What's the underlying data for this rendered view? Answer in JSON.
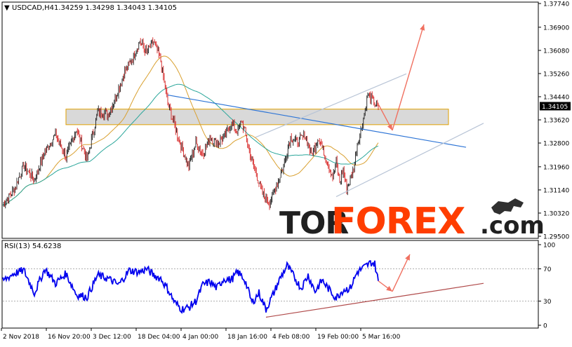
{
  "chart_data": {
    "type": "candlestick",
    "instrument": "USDCAD,H4",
    "ohlc": [
      "1.34259",
      "1.34298",
      "1.34043",
      "1.34105"
    ],
    "current_price": 1.34105,
    "price_axis": {
      "ylim": [
        1.295,
        1.3774
      ],
      "ticks": [
        "1.37740",
        "1.36900",
        "1.36080",
        "1.35260",
        "1.34440",
        "1.33620",
        "1.32800",
        "1.31960",
        "1.31140",
        "1.30320",
        "1.29500"
      ],
      "current_label": "1.34105"
    },
    "time_axis": {
      "labels": [
        "2 Nov 2018",
        "16 Nov 20:00",
        "3 Dec 12:00",
        "18 Dec 04:00",
        "4 Jan 00:00",
        "18 Jan 16:00",
        "4 Feb 08:00",
        "19 Feb 00:00",
        "5 Mar 16:00"
      ]
    },
    "price_anchors": [
      {
        "x": 0,
        "y": 1.306
      },
      {
        "x": 3,
        "y": 1.311
      },
      {
        "x": 6,
        "y": 1.32
      },
      {
        "x": 9,
        "y": 1.315
      },
      {
        "x": 12,
        "y": 1.325
      },
      {
        "x": 15,
        "y": 1.331
      },
      {
        "x": 18,
        "y": 1.323
      },
      {
        "x": 21,
        "y": 1.333
      },
      {
        "x": 24,
        "y": 1.322
      },
      {
        "x": 27,
        "y": 1.339
      },
      {
        "x": 30,
        "y": 1.338
      },
      {
        "x": 32,
        "y": 1.344
      },
      {
        "x": 35,
        "y": 1.354
      },
      {
        "x": 37,
        "y": 1.358
      },
      {
        "x": 39,
        "y": 1.364
      },
      {
        "x": 41,
        "y": 1.36
      },
      {
        "x": 43,
        "y": 1.364
      },
      {
        "x": 45,
        "y": 1.357
      },
      {
        "x": 47,
        "y": 1.342
      },
      {
        "x": 49,
        "y": 1.334
      },
      {
        "x": 51,
        "y": 1.326
      },
      {
        "x": 53,
        "y": 1.32
      },
      {
        "x": 55,
        "y": 1.328
      },
      {
        "x": 57,
        "y": 1.324
      },
      {
        "x": 59,
        "y": 1.33
      },
      {
        "x": 61,
        "y": 1.328
      },
      {
        "x": 63,
        "y": 1.33
      },
      {
        "x": 65,
        "y": 1.335
      },
      {
        "x": 67,
        "y": 1.332
      },
      {
        "x": 68,
        "y": 1.336
      },
      {
        "x": 69,
        "y": 1.332
      },
      {
        "x": 70,
        "y": 1.326
      },
      {
        "x": 72,
        "y": 1.318
      },
      {
        "x": 74,
        "y": 1.31
      },
      {
        "x": 76,
        "y": 1.307
      },
      {
        "x": 78,
        "y": 1.313
      },
      {
        "x": 80,
        "y": 1.32
      },
      {
        "x": 82,
        "y": 1.33
      },
      {
        "x": 84,
        "y": 1.328
      },
      {
        "x": 86,
        "y": 1.331
      },
      {
        "x": 88,
        "y": 1.324
      },
      {
        "x": 90,
        "y": 1.33
      },
      {
        "x": 92,
        "y": 1.323
      },
      {
        "x": 94,
        "y": 1.316
      },
      {
        "x": 95,
        "y": 1.321
      },
      {
        "x": 96,
        "y": 1.314
      },
      {
        "x": 97,
        "y": 1.319
      },
      {
        "x": 98,
        "y": 1.312
      },
      {
        "x": 99,
        "y": 1.315
      },
      {
        "x": 100,
        "y": 1.319
      },
      {
        "x": 101,
        "y": 1.328
      },
      {
        "x": 102,
        "y": 1.332
      },
      {
        "x": 103,
        "y": 1.338
      },
      {
        "x": 104,
        "y": 1.345
      },
      {
        "x": 105,
        "y": 1.344
      },
      {
        "x": 106,
        "y": 1.342
      },
      {
        "x": 107,
        "y": 1.341
      }
    ],
    "zone": {
      "low": 1.3345,
      "high": 1.34,
      "x_start": 18,
      "x_end": 127,
      "fill": "#cccccc",
      "stroke": "#e0a000"
    },
    "trendlines": [
      {
        "name": "resistance",
        "x1": 47,
        "y1": 1.345,
        "x2": 132,
        "y2": 1.3265,
        "color": "#2e75d6"
      },
      {
        "name": "channel-upper",
        "x1": 72,
        "y1": 1.33,
        "x2": 115,
        "y2": 1.3525,
        "color": "#b8c4d6"
      },
      {
        "name": "channel-lower",
        "x1": 95,
        "y1": 1.309,
        "x2": 137,
        "y2": 1.335,
        "color": "#b8c4d6"
      }
    ],
    "forecast_arrows": [
      {
        "from": {
          "x": 107,
          "y": 1.3418
        },
        "to": {
          "x": 111,
          "y": 1.3325
        }
      },
      {
        "from": {
          "x": 111,
          "y": 1.3325
        },
        "to": {
          "x": 120,
          "y": 1.37
        }
      }
    ],
    "moving_averages": [
      {
        "period": 50,
        "color": "#d9a030"
      },
      {
        "period": 100,
        "color": "#2aa69a"
      }
    ],
    "rsi": {
      "label": "RSI(13) 54.6238",
      "ylim": [
        0,
        100
      ],
      "ticks": [
        "100",
        "70",
        "30",
        "0"
      ],
      "levels": [
        70,
        30
      ],
      "color": "#0000ee",
      "anchors": [
        {
          "x": 0,
          "y": 55
        },
        {
          "x": 3,
          "y": 64
        },
        {
          "x": 6,
          "y": 68
        },
        {
          "x": 9,
          "y": 40
        },
        {
          "x": 12,
          "y": 70
        },
        {
          "x": 15,
          "y": 52
        },
        {
          "x": 18,
          "y": 64
        },
        {
          "x": 21,
          "y": 38
        },
        {
          "x": 24,
          "y": 35
        },
        {
          "x": 27,
          "y": 62
        },
        {
          "x": 30,
          "y": 58
        },
        {
          "x": 33,
          "y": 50
        },
        {
          "x": 36,
          "y": 68
        },
        {
          "x": 39,
          "y": 66
        },
        {
          "x": 41,
          "y": 70
        },
        {
          "x": 43,
          "y": 62
        },
        {
          "x": 45,
          "y": 58
        },
        {
          "x": 47,
          "y": 45
        },
        {
          "x": 49,
          "y": 28
        },
        {
          "x": 51,
          "y": 20
        },
        {
          "x": 53,
          "y": 22
        },
        {
          "x": 55,
          "y": 30
        },
        {
          "x": 57,
          "y": 50
        },
        {
          "x": 59,
          "y": 54
        },
        {
          "x": 61,
          "y": 46
        },
        {
          "x": 63,
          "y": 58
        },
        {
          "x": 65,
          "y": 56
        },
        {
          "x": 67,
          "y": 66
        },
        {
          "x": 69,
          "y": 56
        },
        {
          "x": 71,
          "y": 28
        },
        {
          "x": 73,
          "y": 40
        },
        {
          "x": 75,
          "y": 20
        },
        {
          "x": 77,
          "y": 38
        },
        {
          "x": 79,
          "y": 58
        },
        {
          "x": 81,
          "y": 74
        },
        {
          "x": 83,
          "y": 60
        },
        {
          "x": 85,
          "y": 46
        },
        {
          "x": 87,
          "y": 62
        },
        {
          "x": 89,
          "y": 42
        },
        {
          "x": 91,
          "y": 56
        },
        {
          "x": 93,
          "y": 44
        },
        {
          "x": 95,
          "y": 34
        },
        {
          "x": 97,
          "y": 44
        },
        {
          "x": 99,
          "y": 46
        },
        {
          "x": 101,
          "y": 66
        },
        {
          "x": 103,
          "y": 72
        },
        {
          "x": 105,
          "y": 78
        },
        {
          "x": 106,
          "y": 76
        },
        {
          "x": 107,
          "y": 55
        }
      ],
      "trendline": {
        "x1": 75,
        "y1": 10,
        "x2": 137,
        "y2": 52,
        "color": "#b04a4a"
      },
      "forecast_arrows": [
        {
          "from": {
            "x": 107,
            "y": 55
          },
          "to": {
            "x": 111,
            "y": 42
          }
        },
        {
          "from": {
            "x": 111,
            "y": 42
          },
          "to": {
            "x": 116,
            "y": 88
          }
        }
      ]
    },
    "watermark": "TORFOREX.com",
    "grid": false,
    "colors": {
      "bull": "#1a1a1a",
      "bear": "#d62020",
      "arrow": "#f07060",
      "axis": "#000000"
    }
  }
}
